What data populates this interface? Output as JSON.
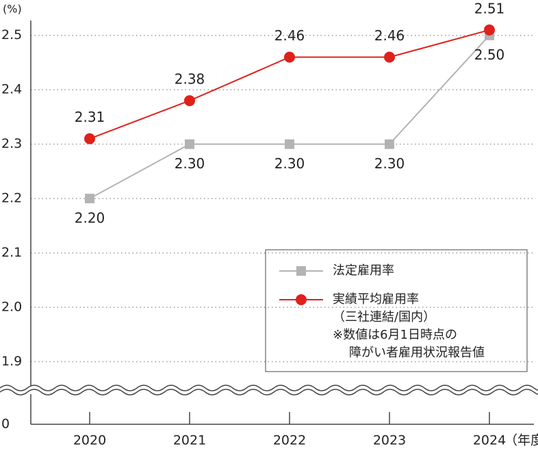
{
  "chart_data": {
    "type": "line",
    "y_unit": "(%)",
    "x_unit": "（年度）",
    "categories": [
      "2020",
      "2021",
      "2022",
      "2023",
      "2024"
    ],
    "series": [
      {
        "name": "法定雇用率",
        "color": "#b3b3b3",
        "marker": "square",
        "values": [
          2.2,
          2.3,
          2.3,
          2.3,
          2.5
        ],
        "value_labels": [
          "2.20",
          "2.30",
          "2.30",
          "2.30",
          "2.50"
        ]
      },
      {
        "name": "実績平均雇用率",
        "color": "#e0201b",
        "marker": "circle",
        "values": [
          2.31,
          2.38,
          2.46,
          2.46,
          2.51
        ]
      }
    ],
    "legend_note": [
      "（三社連結/国内）",
      "※数値は6月1日時点の",
      "障がい者雇用状況報告値"
    ],
    "ylim": [
      0,
      2.55
    ],
    "axis_break": [
      0,
      1.8
    ],
    "yticks": [
      0,
      1.9,
      {
        "value": 2,
        "label": "2.0"
      },
      2.1,
      2.2,
      2.3,
      2.4,
      2.5
    ],
    "grid": true
  }
}
